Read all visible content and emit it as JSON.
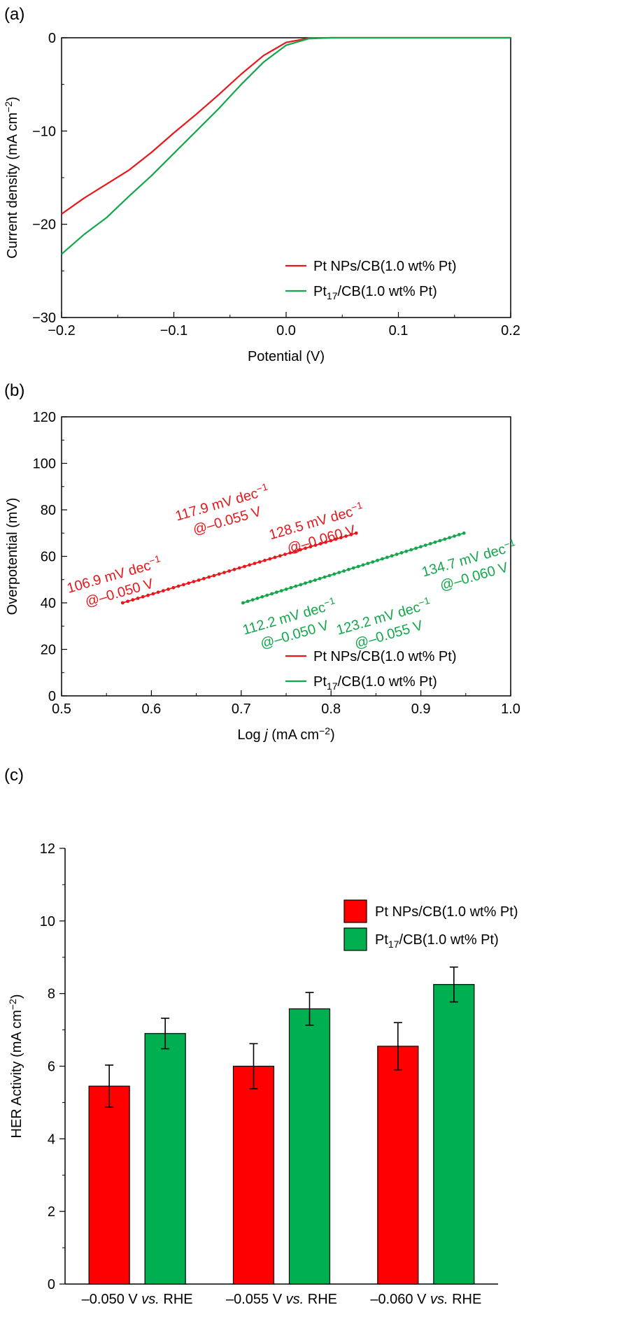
{
  "colors": {
    "red": "#e8171c",
    "green": "#12a74a",
    "axis": "#000000"
  },
  "chart_data": [
    {
      "panel_label": "(a)",
      "type": "line",
      "xlabel": "Potential (V)",
      "ylabel": "Current density (mA cm⁻²)",
      "xlim": [
        -0.2,
        0.2
      ],
      "ylim": [
        -30,
        0
      ],
      "xticks": [
        -0.2,
        -0.1,
        0.0,
        0.1,
        0.2
      ],
      "xtick_labels": [
        "−0.2",
        "−0.1",
        "0.0",
        "0.1",
        "0.2"
      ],
      "yticks": [
        -30,
        -20,
        -10,
        0
      ],
      "ytick_labels": [
        "−30",
        "−20",
        "−10",
        "0"
      ],
      "legend_position": "bottom-right",
      "series": [
        {
          "name": "Pt NPs/CB(1.0 wt% Pt)",
          "color": "#e8171c",
          "x": [
            -0.2,
            -0.18,
            -0.16,
            -0.14,
            -0.12,
            -0.1,
            -0.08,
            -0.06,
            -0.04,
            -0.02,
            0.0,
            0.02,
            0.04,
            0.06,
            0.1,
            0.2
          ],
          "y": [
            -18.9,
            -17.2,
            -15.7,
            -14.2,
            -12.3,
            -10.2,
            -8.2,
            -6.1,
            -3.9,
            -1.9,
            -0.5,
            -0.05,
            0,
            0,
            0,
            0
          ]
        },
        {
          "name": "Pt17/CB(1.0 wt% Pt)",
          "color": "#12a74a",
          "x": [
            -0.2,
            -0.18,
            -0.16,
            -0.14,
            -0.12,
            -0.1,
            -0.08,
            -0.06,
            -0.04,
            -0.02,
            0.0,
            0.02,
            0.04,
            0.06,
            0.1,
            0.2
          ],
          "y": [
            -23.2,
            -21.1,
            -19.3,
            -17.0,
            -14.8,
            -12.4,
            -10.0,
            -7.6,
            -5.0,
            -2.6,
            -0.8,
            -0.1,
            0,
            0,
            0,
            0
          ]
        }
      ]
    },
    {
      "panel_label": "(b)",
      "type": "scatter",
      "xlabel": "Log j (mA cm⁻²)",
      "ylabel": "Overpotential (mV)",
      "xlim": [
        0.5,
        1.0
      ],
      "ylim": [
        0,
        120
      ],
      "xticks": [
        0.5,
        0.6,
        0.7,
        0.8,
        0.9,
        1.0
      ],
      "xtick_labels": [
        "0.5",
        "0.6",
        "0.7",
        "0.8",
        "0.9",
        "1.0"
      ],
      "yticks": [
        0,
        20,
        40,
        60,
        80,
        100,
        120
      ],
      "ytick_labels": [
        "0",
        "20",
        "40",
        "60",
        "80",
        "100",
        "120"
      ],
      "legend_position": "bottom-right",
      "series": [
        {
          "name": "Pt NPs/CB(1.0 wt% Pt)",
          "color": "#e8171c",
          "x_start": 0.568,
          "x_end": 0.828,
          "y_start": 40,
          "y_end": 70
        },
        {
          "name": "Pt17/CB(1.0 wt% Pt)",
          "color": "#12a74a",
          "x_start": 0.702,
          "x_end": 0.948,
          "y_start": 40,
          "y_end": 70
        }
      ],
      "annotations": [
        {
          "series": 0,
          "lines": [
            "106.9 mV dec⁻¹",
            "@–0.050 V"
          ],
          "x": 0.56,
          "y": 50,
          "angle": -16
        },
        {
          "series": 0,
          "lines": [
            "117.9 mV dec⁻¹",
            "@–0.055 V"
          ],
          "x": 0.68,
          "y": 81,
          "angle": -16
        },
        {
          "series": 0,
          "lines": [
            "128.5 mV dec⁻¹",
            "@–0.060 V"
          ],
          "x": 0.785,
          "y": 73,
          "angle": -16
        },
        {
          "series": 1,
          "lines": [
            "112.2 mV dec⁻¹",
            "@–0.050 V"
          ],
          "x": 0.755,
          "y": 32,
          "angle": -16
        },
        {
          "series": 1,
          "lines": [
            "123.2 mV dec⁻¹",
            "@–0.055 V"
          ],
          "x": 0.86,
          "y": 32,
          "angle": -16
        },
        {
          "series": 1,
          "lines": [
            "134.7 mV dec⁻¹",
            "@–0.060 V"
          ],
          "x": 0.955,
          "y": 57,
          "angle": -16
        }
      ]
    },
    {
      "panel_label": "(c)",
      "type": "bar",
      "xlabel": "",
      "ylabel": "HER Activity (mA cm⁻²)",
      "ylim": [
        0,
        12
      ],
      "yticks": [
        0,
        2,
        4,
        6,
        8,
        10,
        12
      ],
      "ytick_labels": [
        "0",
        "2",
        "4",
        "6",
        "8",
        "10",
        "12"
      ],
      "categories": [
        "–0.050 V vs. RHE",
        "–0.055 V vs. RHE",
        "–0.060 V vs. RHE"
      ],
      "legend_position": "top-right",
      "series": [
        {
          "name": "Pt NPs/CB(1.0 wt% Pt)",
          "color": "#ff0000",
          "values": [
            5.45,
            6.0,
            6.55
          ],
          "errors": [
            0.58,
            0.62,
            0.65
          ]
        },
        {
          "name": "Pt17/CB(1.0 wt% Pt)",
          "color": "#00b050",
          "values": [
            6.9,
            7.58,
            8.25
          ],
          "errors": [
            0.42,
            0.45,
            0.48
          ]
        }
      ]
    }
  ]
}
